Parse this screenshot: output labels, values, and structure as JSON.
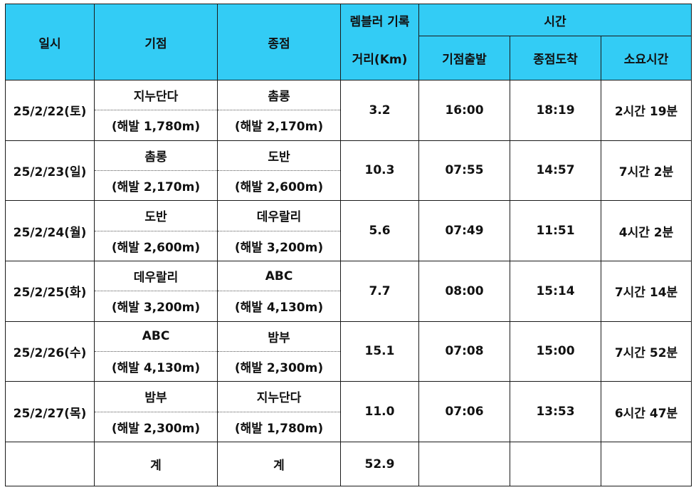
{
  "header": {
    "date": "일시",
    "start": "기점",
    "end": "종점",
    "record_top": "렘블러 기록",
    "record_bottom": "거리(Km)",
    "time_group": "시간",
    "departure": "기점출발",
    "arrival": "종점도착",
    "duration": "소요시간"
  },
  "rows": [
    {
      "date": "25/2/22(토)",
      "start_name": "지누단다",
      "start_alt": "(해발 1,780m)",
      "end_name": "촘롱",
      "end_alt": "(해발 2,170m)",
      "distance": "3.2",
      "departure": "16:00",
      "arrival": "18:19",
      "duration": "2시간 19분"
    },
    {
      "date": "25/2/23(일)",
      "start_name": "촘롱",
      "start_alt": "(해발 2,170m)",
      "end_name": "도반",
      "end_alt": "(해발 2,600m)",
      "distance": "10.3",
      "departure": "07:55",
      "arrival": "14:57",
      "duration": "7시간 2분"
    },
    {
      "date": "25/2/24(월)",
      "start_name": "도반",
      "start_alt": "(해발 2,600m)",
      "end_name": "데우랄리",
      "end_alt": "(해발 3,200m)",
      "distance": "5.6",
      "departure": "07:49",
      "arrival": "11:51",
      "duration": "4시간 2분"
    },
    {
      "date": "25/2/25(화)",
      "start_name": "데우랄리",
      "start_alt": "(해발 3,200m)",
      "end_name": "ABC",
      "end_alt": "(해발 4,130m)",
      "distance": "7.7",
      "departure": "08:00",
      "arrival": "15:14",
      "duration": "7시간 14분"
    },
    {
      "date": "25/2/26(수)",
      "start_name": "ABC",
      "start_alt": "(해발 4,130m)",
      "end_name": "밤부",
      "end_alt": "(해발 2,300m)",
      "distance": "15.1",
      "departure": "07:08",
      "arrival": "15:00",
      "duration": "7시간 52분"
    },
    {
      "date": "25/2/27(목)",
      "start_name": "밤부",
      "start_alt": "(해발 2,300m)",
      "end_name": "지누단다",
      "end_alt": "(해발 1,780m)",
      "distance": "11.0",
      "departure": "07:06",
      "arrival": "13:53",
      "duration": "6시간 47분"
    }
  ],
  "total": {
    "start_label": "계",
    "end_label": "계",
    "distance": "52.9"
  }
}
